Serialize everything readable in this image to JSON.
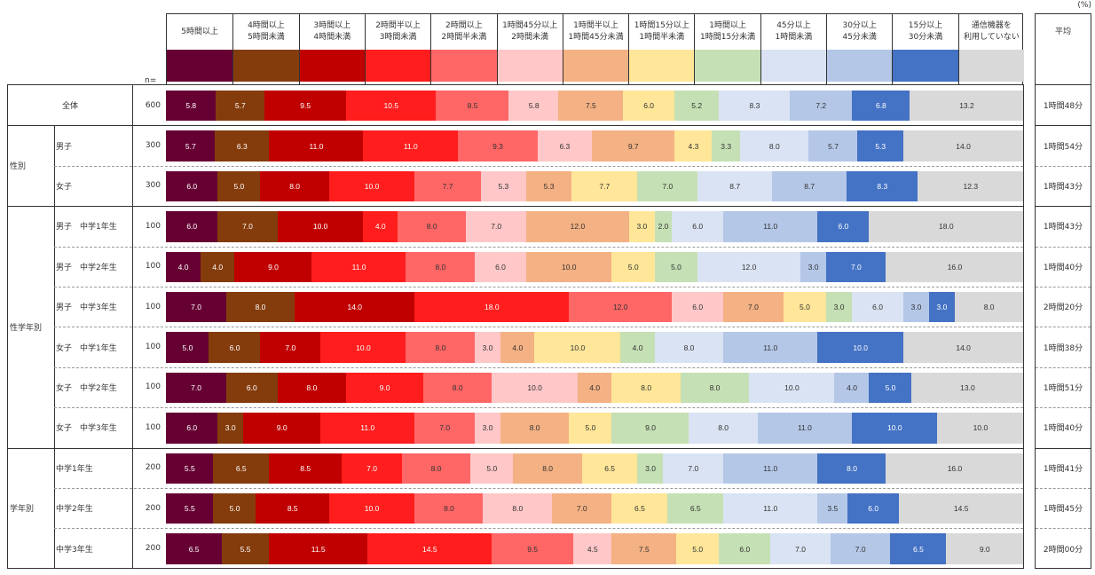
{
  "chart_data": {
    "type": "bar",
    "orientation": "horizontal",
    "stacked": "100%",
    "unit_label": "(%)",
    "n_label": "n=",
    "average_header": "平均",
    "categories_legend": [
      {
        "label": "5時間以上",
        "color": "#660033"
      },
      {
        "label": "4時間以上\n5時間未満",
        "color": "#843C0C"
      },
      {
        "label": "3時間以上\n4時間未満",
        "color": "#C00000"
      },
      {
        "label": "2時間半以上\n3時間未満",
        "color": "#FF1D1D"
      },
      {
        "label": "2時間以上\n2時間半未満",
        "color": "#FF6666"
      },
      {
        "label": "1時間45分以上\n2時間未満",
        "color": "#FFC7C7"
      },
      {
        "label": "1時間半以上\n1時間45分未満",
        "color": "#F4B183"
      },
      {
        "label": "1時間15分以上\n1時間半未満",
        "color": "#FFE699"
      },
      {
        "label": "1時間以上\n1時間15分未満",
        "color": "#C5E0B4"
      },
      {
        "label": "45分以上\n1時間未満",
        "color": "#DAE3F3"
      },
      {
        "label": "30分以上\n45分未満",
        "color": "#B4C7E7"
      },
      {
        "label": "15分以上\n30分未満",
        "color": "#4472C4"
      },
      {
        "label": "通信機器を\n利用していない",
        "color": "#D9D9D9"
      }
    ],
    "label_colors": [
      "#ffffff",
      "#ffffff",
      "#ffffff",
      "#ffffff",
      "#333333",
      "#333333",
      "#333333",
      "#333333",
      "#333333",
      "#333333",
      "#333333",
      "#ffffff",
      "#333333"
    ],
    "groups": [
      {
        "name": "全体",
        "rows": [
          {
            "label": "",
            "n": "600",
            "average": "1時間48分",
            "values": [
              5.8,
              5.7,
              9.5,
              10.5,
              8.5,
              5.8,
              7.5,
              6.0,
              5.2,
              8.3,
              7.2,
              6.8,
              13.2
            ]
          }
        ]
      },
      {
        "name": "性別",
        "rows": [
          {
            "label": "男子",
            "n": "300",
            "average": "1時間54分",
            "values": [
              5.7,
              6.3,
              11.0,
              11.0,
              9.3,
              6.3,
              9.7,
              4.3,
              3.3,
              8.0,
              5.7,
              5.3,
              14.0
            ]
          },
          {
            "label": "女子",
            "n": "300",
            "average": "1時間43分",
            "values": [
              6.0,
              5.0,
              8.0,
              10.0,
              7.7,
              5.3,
              5.3,
              7.7,
              7.0,
              8.7,
              8.7,
              8.3,
              12.3
            ]
          }
        ]
      },
      {
        "name": "性学年別",
        "rows": [
          {
            "label": "男子　中学1年生",
            "n": "100",
            "average": "1時間43分",
            "values": [
              6.0,
              7.0,
              10.0,
              4.0,
              8.0,
              7.0,
              12.0,
              3.0,
              2.0,
              6.0,
              11.0,
              6.0,
              18.0
            ]
          },
          {
            "label": "男子　中学2年生",
            "n": "100",
            "average": "1時間40分",
            "values": [
              4.0,
              4.0,
              9.0,
              11.0,
              8.0,
              6.0,
              10.0,
              5.0,
              5.0,
              12.0,
              3.0,
              7.0,
              16.0
            ]
          },
          {
            "label": "男子　中学3年生",
            "n": "100",
            "average": "2時間20分",
            "values": [
              7.0,
              8.0,
              14.0,
              18.0,
              12.0,
              6.0,
              7.0,
              5.0,
              3.0,
              6.0,
              3.0,
              3.0,
              8.0
            ]
          },
          {
            "label": "女子　中学1年生",
            "n": "100",
            "average": "1時間38分",
            "values": [
              5.0,
              6.0,
              7.0,
              10.0,
              8.0,
              3.0,
              4.0,
              10.0,
              4.0,
              8.0,
              11.0,
              10.0,
              14.0
            ]
          },
          {
            "label": "女子　中学2年生",
            "n": "100",
            "average": "1時間51分",
            "values": [
              7.0,
              6.0,
              8.0,
              9.0,
              8.0,
              10.0,
              4.0,
              8.0,
              8.0,
              10.0,
              4.0,
              5.0,
              13.0
            ]
          },
          {
            "label": "女子　中学3年生",
            "n": "100",
            "average": "1時間40分",
            "values": [
              6.0,
              3.0,
              9.0,
              11.0,
              7.0,
              3.0,
              8.0,
              5.0,
              9.0,
              8.0,
              11.0,
              10.0,
              10.0
            ]
          }
        ]
      },
      {
        "name": "学年別",
        "rows": [
          {
            "label": "中学1年生",
            "n": "200",
            "average": "1時間41分",
            "values": [
              5.5,
              6.5,
              8.5,
              7.0,
              8.0,
              5.0,
              8.0,
              6.5,
              3.0,
              7.0,
              11.0,
              8.0,
              16.0
            ]
          },
          {
            "label": "中学2年生",
            "n": "200",
            "average": "1時間45分",
            "values": [
              5.5,
              5.0,
              8.5,
              10.0,
              8.0,
              8.0,
              7.0,
              6.5,
              6.5,
              11.0,
              3.5,
              6.0,
              14.5
            ]
          },
          {
            "label": "中学3年生",
            "n": "200",
            "average": "2時間00分",
            "values": [
              6.5,
              5.5,
              11.5,
              14.5,
              9.5,
              4.5,
              7.5,
              5.0,
              6.0,
              7.0,
              7.0,
              6.5,
              9.0
            ]
          }
        ]
      }
    ]
  }
}
